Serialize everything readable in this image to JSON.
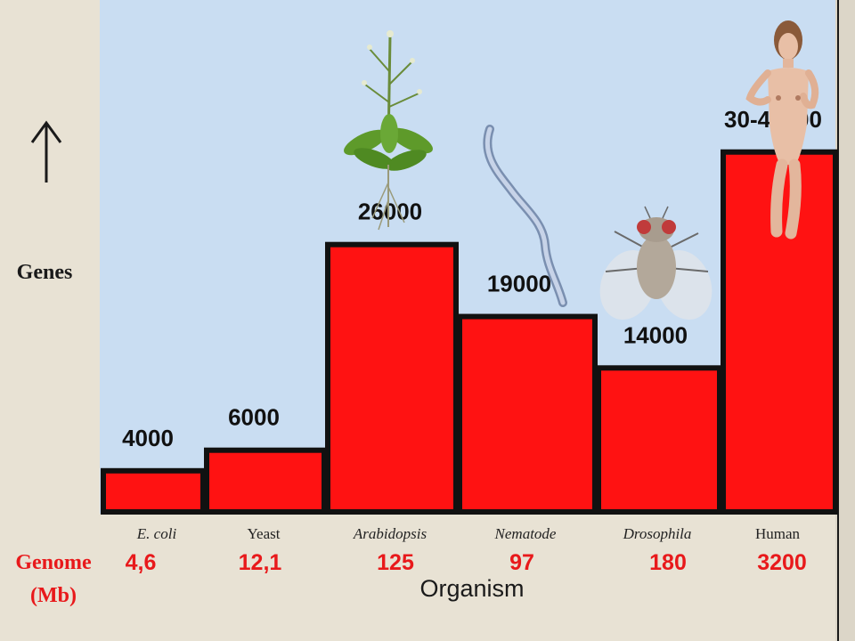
{
  "chart_data": {
    "type": "bar",
    "categories": [
      "E. coli",
      "Yeast",
      "Arabidopsis",
      "Nematode",
      "Drosophila",
      "Human"
    ],
    "italic_categories": [
      true,
      false,
      true,
      true,
      true,
      false
    ],
    "values": [
      4000,
      6000,
      26000,
      19000,
      14000,
      35000
    ],
    "value_labels": [
      "4000",
      "6000",
      "26000",
      "19000",
      "14000",
      "30-40000"
    ],
    "genome_mb": [
      "4,6",
      "12,1",
      "125",
      "97",
      "180",
      "3200"
    ],
    "ylabel": "Genes",
    "xlabel": "Organism",
    "genome_label_line1": "Genome",
    "genome_label_line2": "(Mb)",
    "ylim": [
      0,
      40000
    ],
    "grid": false,
    "colors": {
      "bar": "#ff1212",
      "bar_stroke": "#111111",
      "plot_bg": "#c9ddf2",
      "page_bg": "#e8e2d4",
      "genome_text": "#e8191b"
    },
    "icons": [
      "arabidopsis-plant-icon",
      "nematode-worm-icon",
      "drosophila-fly-icon",
      "human-figure-icon"
    ]
  }
}
